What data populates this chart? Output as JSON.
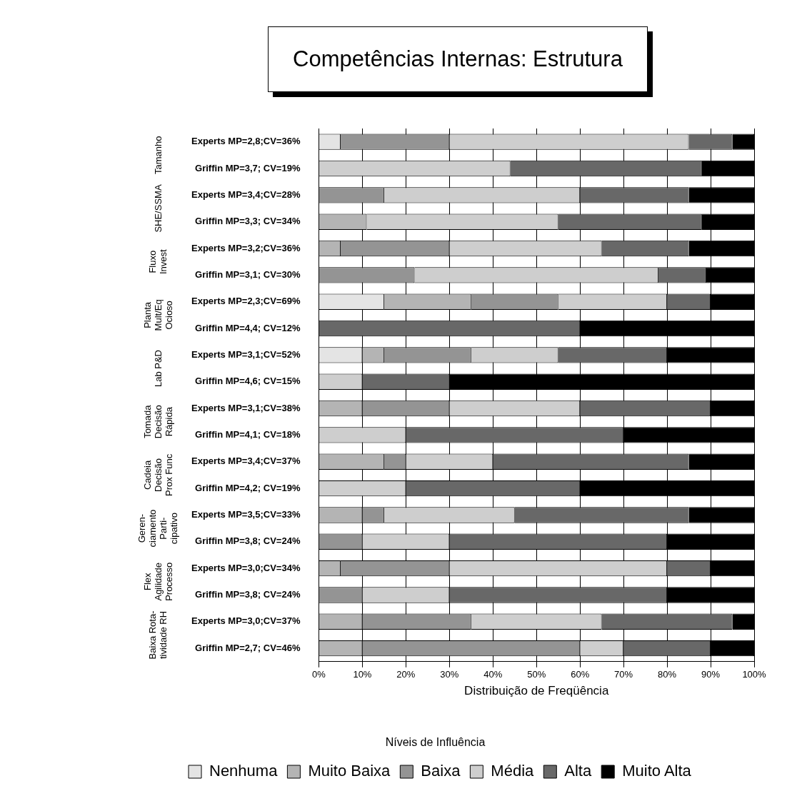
{
  "chart_data": {
    "type": "bar",
    "orientation": "horizontal",
    "stacked": true,
    "title": "Competências Internas: Estrutura",
    "xlabel": "Distribuição de Freqüência",
    "legend_title": "Níveis de Influência",
    "categories": [
      "Experts MP=2,8;CV=36%",
      "Griffin MP=3,7; CV=19%",
      "Experts MP=3,4;CV=28%",
      "Griffin MP=3,3; CV=34%",
      "Experts MP=3,2;CV=36%",
      "Griffin MP=3,1; CV=30%",
      "Experts MP=2,3;CV=69%",
      "Griffin MP=4,4; CV=12%",
      "Experts MP=3,1;CV=52%",
      "Griffin MP=4,6; CV=15%",
      "Experts MP=3,1;CV=38%",
      "Griffin MP=4,1; CV=18%",
      "Experts MP=3,4;CV=37%",
      "Griffin MP=4,2; CV=19%",
      "Experts MP=3,5;CV=33%",
      "Griffin MP=3,8; CV=24%",
      "Experts MP=3,0;CV=34%",
      "Griffin MP=3,8; CV=24%",
      "Experts MP=3,0;CV=37%",
      "Griffin MP=2,7; CV=46%"
    ],
    "series": [
      {
        "name": "Nenhuma",
        "color": "#e4e4e4",
        "values": [
          5,
          0,
          0,
          0,
          0,
          0,
          15,
          0,
          10,
          0,
          0,
          0,
          0,
          0,
          0,
          0,
          0,
          0,
          0,
          0
        ]
      },
      {
        "name": "Muito Baixa",
        "color": "#b4b4b4",
        "values": [
          0,
          0,
          0,
          11,
          5,
          0,
          20,
          0,
          5,
          0,
          10,
          0,
          15,
          0,
          10,
          0,
          5,
          0,
          10,
          10
        ]
      },
      {
        "name": "Baixa",
        "color": "#949494",
        "values": [
          25,
          0,
          15,
          0,
          25,
          22,
          20,
          0,
          20,
          0,
          20,
          0,
          5,
          0,
          5,
          10,
          25,
          10,
          25,
          50
        ]
      },
      {
        "name": "Média",
        "color": "#cecece",
        "values": [
          55,
          44,
          45,
          44,
          35,
          56,
          25,
          0,
          20,
          10,
          30,
          20,
          20,
          20,
          30,
          20,
          50,
          20,
          30,
          10
        ]
      },
      {
        "name": "Alta",
        "color": "#686868",
        "values": [
          10,
          44,
          25,
          33,
          20,
          11,
          10,
          60,
          25,
          20,
          30,
          50,
          45,
          40,
          40,
          50,
          10,
          50,
          30,
          20
        ]
      },
      {
        "name": "Muito Alta",
        "color": "#000000",
        "values": [
          5,
          12,
          15,
          12,
          15,
          11,
          10,
          40,
          20,
          70,
          10,
          30,
          15,
          40,
          15,
          20,
          10,
          20,
          5,
          10
        ]
      }
    ],
    "annotations": [
      "Tamanho",
      "SHE/SSMA",
      "Fluxo\nInvest",
      "Planta\nMult/Eq\nOcioso",
      "Lab P&D",
      "Tomada\nDecisão\nRápida",
      "Cadeia\nDecisão\nProx Func",
      "Geren-\nciamento\nParti-\ncipativo",
      "Flex\nAgilidade\nProcesso",
      "Baixa Rota-\ntividade RH"
    ],
    "xlim": [
      0,
      100
    ],
    "xticks": [
      {
        "value": 0,
        "label": "0%"
      },
      {
        "value": 10,
        "label": "10%"
      },
      {
        "value": 20,
        "label": "20%"
      },
      {
        "value": 30,
        "label": "30%"
      },
      {
        "value": 40,
        "label": "40%"
      },
      {
        "value": 50,
        "label": "50%"
      },
      {
        "value": 60,
        "label": "60%"
      },
      {
        "value": 70,
        "label": "70%"
      },
      {
        "value": 80,
        "label": "80%"
      },
      {
        "value": 90,
        "label": "90%"
      },
      {
        "value": 100,
        "label": "100%"
      }
    ],
    "grid": "x",
    "legend": "bottom left"
  }
}
